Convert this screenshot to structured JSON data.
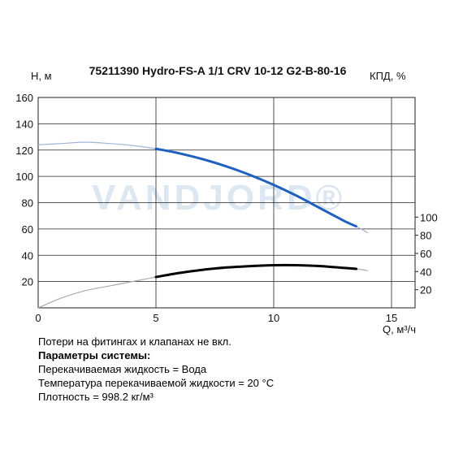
{
  "chart_data": {
    "type": "line",
    "title": "75211390 Hydro-FS-A 1/1 CRV 10-12 G2-B-80-16",
    "xlabel": "Q, м³/ч",
    "ylabel": "H, м",
    "y2label": "КПД, %",
    "xlim": [
      0,
      16
    ],
    "ylim": [
      0,
      160
    ],
    "y2lim": [
      0,
      120
    ],
    "xticks": [
      "0",
      "5",
      "10",
      "15"
    ],
    "yticks": [
      "0",
      "20",
      "40",
      "60",
      "80",
      "100",
      "120",
      "140",
      "160"
    ],
    "y2ticks": [
      "20",
      "40",
      "60",
      "80",
      "100"
    ],
    "grid": true,
    "watermark": "VANDJORD®",
    "series": [
      {
        "curve": "head",
        "color": "#1f5fbf",
        "thin_color": "#9fb4d8",
        "x": [
          0,
          1,
          2,
          3,
          4,
          5,
          6,
          7,
          8,
          9,
          10,
          11,
          12,
          13,
          13.5,
          14
        ],
        "values": [
          124,
          125,
          126,
          125,
          123.5,
          121,
          117.5,
          113,
          107.5,
          101,
          93.5,
          85,
          75.5,
          66,
          62,
          57
        ],
        "bold_range": [
          5,
          13.5
        ]
      },
      {
        "curve": "efficiency",
        "color": "#000000",
        "thin_color": "#aaaaaa",
        "x": [
          0,
          1,
          2,
          3,
          4,
          5,
          6,
          7,
          8,
          9,
          10,
          11,
          12,
          13,
          13.5,
          14
        ],
        "values": [
          0,
          11,
          19,
          24,
          29,
          34,
          38.5,
          42,
          44.5,
          46,
          47,
          47,
          46,
          44,
          43,
          41
        ],
        "bold_range": [
          5,
          13.5
        ]
      }
    ]
  },
  "notes": {
    "line1": "Потери на фитингах и клапанах не вкл.",
    "line2": "Параметры системы:",
    "line3": "Перекачиваемая жидкость = Вода",
    "line4": "Температура перекачиваемой жидкости = 20 °C",
    "line5": "Плотность = 998.2 кг/м³"
  }
}
